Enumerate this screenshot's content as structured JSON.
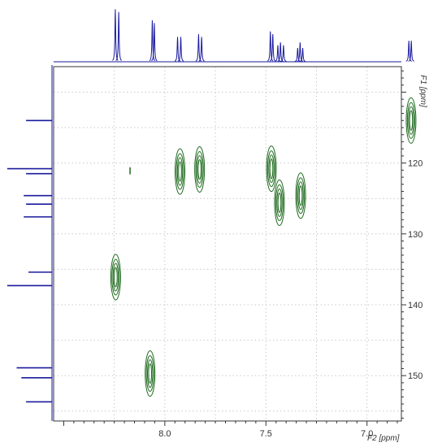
{
  "chart_data": {
    "type": "hsqc-2d-nmr",
    "xlabel": "F2 [ppm]",
    "ylabel": "F1 [ppm]",
    "x_axis_reversed": true,
    "y_axis_reversed": true,
    "x_ticks": [
      "8.0",
      "7.5",
      "7.0"
    ],
    "y_ticks": [
      "120",
      "130",
      "140",
      "150"
    ],
    "xlim": [
      8.55,
      6.83
    ],
    "ylim": [
      106.4,
      156.4
    ],
    "grid": "dotted",
    "colors": {
      "projection": "#1a1a9e",
      "contour": "#1e6b1e",
      "grid": "#c9c9c9",
      "axis": "#333333"
    },
    "contour_peaks": [
      {
        "x_ppm": 8.243,
        "y_ppm": 136.1
      },
      {
        "x_ppm": 8.073,
        "y_ppm": 149.7
      },
      {
        "x_ppm": 7.925,
        "y_ppm": 121.2
      },
      {
        "x_ppm": 7.828,
        "y_ppm": 120.9
      },
      {
        "x_ppm": 7.473,
        "y_ppm": 120.8
      },
      {
        "x_ppm": 7.433,
        "y_ppm": 125.6
      },
      {
        "x_ppm": 7.328,
        "y_ppm": 124.6
      },
      {
        "x_ppm": 6.782,
        "y_ppm": 114.0
      }
    ],
    "f2_projection_peaks": [
      {
        "ppm": 8.245,
        "intensity": 0.95
      },
      {
        "ppm": 8.228,
        "intensity": 0.9
      },
      {
        "ppm": 8.062,
        "intensity": 0.75
      },
      {
        "ppm": 8.052,
        "intensity": 0.7
      },
      {
        "ppm": 7.937,
        "intensity": 0.45
      },
      {
        "ppm": 7.921,
        "intensity": 0.45
      },
      {
        "ppm": 7.833,
        "intensity": 0.5
      },
      {
        "ppm": 7.818,
        "intensity": 0.45
      },
      {
        "ppm": 7.478,
        "intensity": 0.55
      },
      {
        "ppm": 7.466,
        "intensity": 0.5
      },
      {
        "ppm": 7.441,
        "intensity": 0.3
      },
      {
        "ppm": 7.428,
        "intensity": 0.35
      },
      {
        "ppm": 7.413,
        "intensity": 0.3
      },
      {
        "ppm": 7.343,
        "intensity": 0.25
      },
      {
        "ppm": 7.331,
        "intensity": 0.35
      },
      {
        "ppm": 7.318,
        "intensity": 0.25
      },
      {
        "ppm": 6.793,
        "intensity": 0.38
      },
      {
        "ppm": 6.781,
        "intensity": 0.38
      }
    ],
    "f1_projection_peaks": [
      {
        "ppm": 114.0,
        "intensity": 0.55
      },
      {
        "ppm": 120.8,
        "intensity": 0.95
      },
      {
        "ppm": 121.5,
        "intensity": 0.55
      },
      {
        "ppm": 124.6,
        "intensity": 0.6
      },
      {
        "ppm": 125.8,
        "intensity": 0.55
      },
      {
        "ppm": 127.6,
        "intensity": 0.6
      },
      {
        "ppm": 135.4,
        "intensity": 0.5
      },
      {
        "ppm": 137.3,
        "intensity": 0.95
      },
      {
        "ppm": 148.9,
        "intensity": 0.75
      },
      {
        "ppm": 150.3,
        "intensity": 0.65
      },
      {
        "ppm": 153.7,
        "intensity": 0.55
      }
    ]
  }
}
